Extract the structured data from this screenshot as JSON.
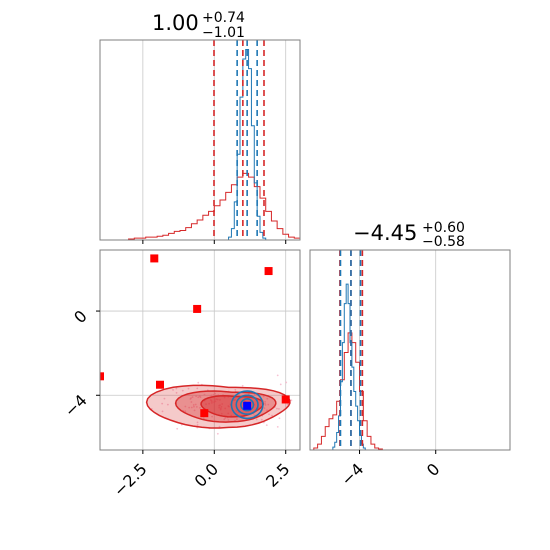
{
  "colors": {
    "red": "#d62728",
    "blue": "#1f77b4",
    "truth_marker": "#0000ff",
    "red_marker": "#ff0000",
    "grid": "#c8c8c8",
    "scatter": "#f4a8c0"
  },
  "chart_data": {
    "type": "corner",
    "parameters": [
      "p0",
      "p1"
    ],
    "titles": [
      {
        "value": "1.00",
        "upper": "+0.74",
        "lower": "−1.01"
      },
      {
        "value": "−4.45",
        "upper": "+0.60",
        "lower": "−0.58"
      }
    ],
    "axes": {
      "p0": {
        "range": [
          -4.0,
          3.0
        ],
        "ticks": [
          -2.5,
          0.0,
          2.5
        ],
        "tick_labels": [
          "−2.5",
          "0.0",
          "2.5"
        ]
      },
      "p1_on_2d": {
        "range": [
          -6.6,
          2.9
        ],
        "ticks": [
          -4,
          0
        ],
        "tick_labels": [
          "−4",
          "0"
        ]
      },
      "p1_on_hist": {
        "range": [
          -6.6,
          3.9
        ],
        "ticks": [
          -4,
          0
        ],
        "tick_labels": [
          "−4",
          "0"
        ]
      }
    },
    "grid": true,
    "hist_p0": {
      "ymax": 210,
      "bin_edges": [
        -3.0,
        -2.8,
        -2.6,
        -2.4,
        -2.2,
        -2.0,
        -1.8,
        -1.6,
        -1.4,
        -1.2,
        -1.0,
        -0.8,
        -0.6,
        -0.4,
        -0.2,
        0.0,
        0.2,
        0.4,
        0.6,
        0.8,
        1.0,
        1.2,
        1.4,
        1.6,
        1.8,
        2.0,
        2.2,
        2.4,
        2.6,
        2.8,
        3.0
      ],
      "red_counts": [
        1,
        2,
        2,
        3,
        3,
        4,
        5,
        7,
        9,
        10,
        13,
        17,
        21,
        26,
        30,
        36,
        42,
        50,
        58,
        66,
        70,
        66,
        56,
        44,
        30,
        20,
        12,
        6,
        3,
        2
      ],
      "blue_edges": [
        0.5,
        0.6,
        0.7,
        0.8,
        0.9,
        1.0,
        1.1,
        1.2,
        1.3,
        1.4,
        1.5,
        1.6,
        1.7,
        1.8
      ],
      "blue_counts": [
        3,
        12,
        40,
        90,
        150,
        190,
        200,
        180,
        120,
        60,
        25,
        8,
        2
      ],
      "red_quantiles": [
        -0.01,
        1.0,
        1.74
      ],
      "blue_quantiles": [
        0.8,
        1.15,
        1.5
      ]
    },
    "hist_p1": {
      "ymax": 205,
      "bin_edges": [
        -6.4,
        -6.2,
        -6.0,
        -5.8,
        -5.6,
        -5.4,
        -5.2,
        -5.0,
        -4.8,
        -4.6,
        -4.4,
        -4.2,
        -4.0,
        -3.8,
        -3.6,
        -3.4,
        -3.2,
        -3.0,
        -2.8
      ],
      "red_counts": [
        2,
        6,
        14,
        24,
        32,
        36,
        50,
        72,
        100,
        120,
        110,
        90,
        60,
        30,
        14,
        6,
        2,
        1
      ],
      "blue_edges": [
        -5.4,
        -5.3,
        -5.2,
        -5.1,
        -5.0,
        -4.9,
        -4.8,
        -4.7,
        -4.6,
        -4.5,
        -4.4,
        -4.3,
        -4.2,
        -4.1,
        -4.0,
        -3.9,
        -3.8,
        -3.7
      ],
      "blue_counts": [
        3,
        8,
        18,
        35,
        70,
        110,
        150,
        170,
        150,
        110,
        85,
        60,
        45,
        30,
        15,
        6,
        2
      ],
      "red_quantiles": [
        -5.03,
        -4.45,
        -3.85
      ],
      "blue_quantiles": [
        -5.0,
        -4.45,
        -3.95
      ]
    },
    "points_2d": {
      "red_squares": [
        [
          -2.1,
          2.5
        ],
        [
          1.9,
          1.9
        ],
        [
          -0.6,
          0.1
        ],
        [
          -4.0,
          -3.1
        ],
        [
          -1.9,
          -3.5
        ],
        [
          2.5,
          -4.2
        ],
        [
          -0.35,
          -4.85
        ]
      ],
      "blue_squares": [
        [
          1.15,
          -4.5
        ]
      ],
      "red_contour_center": [
        0.5,
        -4.5
      ],
      "blue_contour_center": [
        1.15,
        -4.45
      ]
    }
  }
}
